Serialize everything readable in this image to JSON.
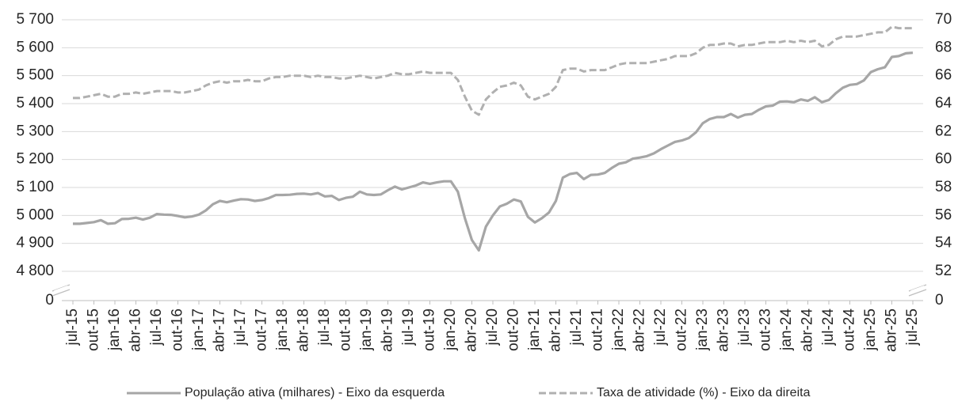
{
  "chart_data": {
    "type": "line",
    "categories": [
      "jul-15",
      null,
      null,
      "out-15",
      null,
      null,
      "jan-16",
      null,
      null,
      "abr-16",
      null,
      null,
      "jul-16",
      null,
      null,
      "out-16",
      null,
      null,
      "jan-17",
      null,
      null,
      "abr-17",
      null,
      null,
      "jul-17",
      null,
      null,
      "out-17",
      null,
      null,
      "jan-18",
      null,
      null,
      "abr-18",
      null,
      null,
      "jul-18",
      null,
      null,
      "out-18",
      null,
      null,
      "jan-19",
      null,
      null,
      "abr-19",
      null,
      null,
      "jul-19",
      null,
      null,
      "out-19",
      null,
      null,
      "jan-20",
      null,
      null,
      "abr-20",
      null,
      null,
      "jul-20",
      null,
      null,
      "out-20",
      null,
      null,
      "jan-21",
      null,
      null,
      "abr-21",
      null,
      null,
      "jul-21",
      null,
      null,
      "out-21",
      null,
      null,
      "jan-22",
      null,
      null,
      "abr-22",
      null,
      null,
      "jul-22",
      null,
      null,
      "out-22",
      null,
      null,
      "jan-23",
      null,
      null,
      "abr-23",
      null,
      null,
      "jul-23",
      null,
      null,
      "out-23",
      null,
      null,
      "jan-24",
      null,
      null,
      "abr-24",
      null,
      null,
      "jul-24",
      null,
      null,
      "out-24",
      null,
      null,
      "jan-25",
      null,
      null,
      "abr-25",
      null,
      null,
      "jul-25"
    ],
    "series": [
      {
        "name": "População ativa (milhares) - Eixo da esquerda",
        "color": "#a6a6a6",
        "dash": false,
        "values": [
          4970,
          4970,
          4973,
          4976,
          4983,
          4970,
          4972,
          4987,
          4988,
          4992,
          4985,
          4992,
          5005,
          5003,
          5002,
          4998,
          4993,
          4996,
          5003,
          5018,
          5040,
          5052,
          5047,
          5053,
          5058,
          5057,
          5052,
          5055,
          5062,
          5073,
          5073,
          5074,
          5077,
          5078,
          5075,
          5080,
          5068,
          5070,
          5055,
          5063,
          5067,
          5085,
          5075,
          5073,
          5075,
          5090,
          5103,
          5093,
          5100,
          5107,
          5118,
          5113,
          5118,
          5122,
          5122,
          5085,
          4990,
          4912,
          4875,
          4960,
          5000,
          5032,
          5042,
          5057,
          5050,
          4995,
          4975,
          4990,
          5010,
          5052,
          5135,
          5148,
          5152,
          5130,
          5145,
          5146,
          5152,
          5170,
          5185,
          5190,
          5203,
          5207,
          5212,
          5222,
          5237,
          5250,
          5263,
          5268,
          5277,
          5297,
          5330,
          5345,
          5352,
          5352,
          5363,
          5350,
          5360,
          5363,
          5378,
          5390,
          5393,
          5407,
          5408,
          5405,
          5415,
          5410,
          5423,
          5405,
          5413,
          5437,
          5457,
          5467,
          5470,
          5483,
          5513,
          5523,
          5530,
          5567,
          5570,
          5580,
          5582
        ]
      },
      {
        "name": "Taxa de atividade (%) - Eixo da direita",
        "color": "#b0b0b0",
        "dash": true,
        "axis": "y2",
        "values": [
          64.4,
          64.4,
          64.5,
          64.6,
          64.7,
          64.5,
          64.5,
          64.7,
          64.7,
          64.8,
          64.7,
          64.8,
          64.9,
          64.9,
          64.9,
          64.8,
          64.8,
          64.9,
          65.0,
          65.3,
          65.5,
          65.6,
          65.5,
          65.6,
          65.6,
          65.7,
          65.6,
          65.6,
          65.8,
          65.9,
          65.9,
          66.0,
          66.0,
          66.0,
          65.9,
          66.0,
          65.9,
          65.9,
          65.8,
          65.8,
          65.9,
          66.0,
          65.9,
          65.8,
          65.9,
          66.0,
          66.2,
          66.1,
          66.1,
          66.2,
          66.3,
          66.2,
          66.2,
          66.2,
          66.2,
          65.7,
          64.5,
          63.5,
          63.2,
          64.3,
          64.8,
          65.2,
          65.3,
          65.5,
          65.3,
          64.5,
          64.3,
          64.5,
          64.7,
          65.2,
          66.4,
          66.5,
          66.5,
          66.3,
          66.4,
          66.4,
          66.4,
          66.6,
          66.8,
          66.9,
          66.9,
          66.9,
          66.9,
          67.0,
          67.1,
          67.2,
          67.4,
          67.4,
          67.4,
          67.6,
          68.0,
          68.2,
          68.2,
          68.3,
          68.3,
          68.1,
          68.2,
          68.2,
          68.3,
          68.4,
          68.4,
          68.4,
          68.5,
          68.4,
          68.5,
          68.4,
          68.5,
          68.1,
          68.2,
          68.6,
          68.8,
          68.8,
          68.8,
          68.9,
          69.0,
          69.1,
          69.1,
          69.5,
          69.4,
          69.4,
          69.4
        ]
      }
    ],
    "ylim": [
      4800,
      5700
    ],
    "yticks": [
      0,
      {
        "value": 4800,
        "label": "4 800"
      },
      {
        "value": 4900,
        "label": "4 900"
      },
      {
        "value": 5000,
        "label": "5 000"
      },
      {
        "value": 5100,
        "label": "5 100"
      },
      {
        "value": 5200,
        "label": "5 200"
      },
      {
        "value": 5300,
        "label": "5 300"
      },
      {
        "value": 5400,
        "label": "5 400"
      },
      {
        "value": 5500,
        "label": "5 500"
      },
      {
        "value": 5600,
        "label": "5 600"
      },
      {
        "value": 5700,
        "label": "5 700"
      }
    ],
    "y2lim": [
      52,
      70
    ],
    "y2ticks": [
      0,
      52,
      54,
      56,
      58,
      60,
      62,
      64,
      66,
      68,
      70
    ],
    "axis_break": true,
    "grid": true,
    "legend": "bottom"
  }
}
